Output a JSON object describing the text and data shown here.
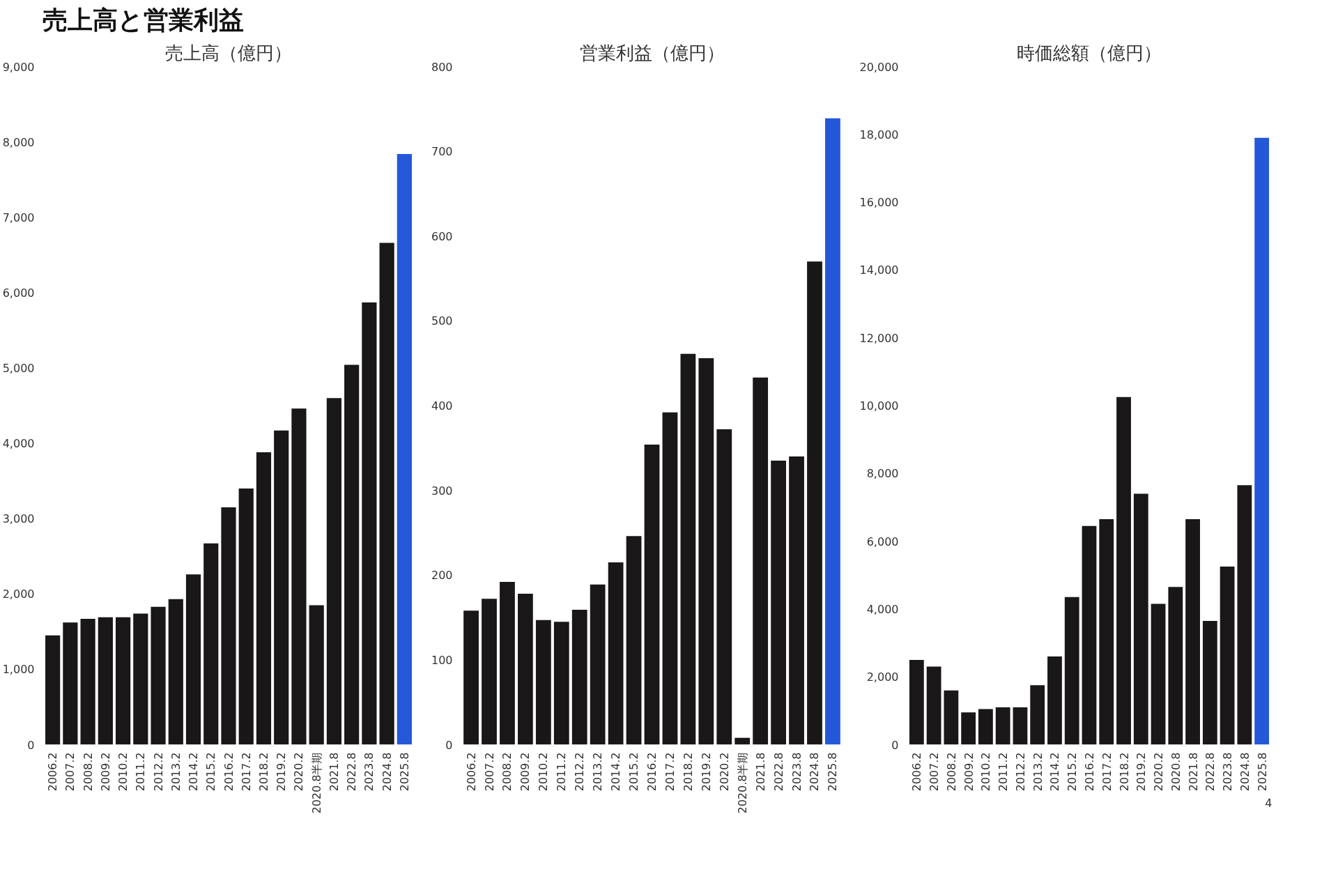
{
  "chart_data": [
    {
      "type": "bar",
      "title": "売上高（億円）",
      "annotations": [
        "売上高と営業利益"
      ],
      "categories": [
        "2006.2",
        "2007.2",
        "2008.2",
        "2009.2",
        "2010.2",
        "2011.2",
        "2012.2",
        "2013.2",
        "2014.2",
        "2015.2",
        "2016.2",
        "2017.2",
        "2018.2",
        "2019.2",
        "2020.2",
        "2020.8半期",
        "2021.8",
        "2022.8",
        "2023.8",
        "2024.8",
        "2025.8"
      ],
      "values": [
        1450,
        1620,
        1670,
        1690,
        1690,
        1740,
        1830,
        1930,
        2260,
        2670,
        3150,
        3400,
        3880,
        4170,
        4460,
        1850,
        4600,
        5040,
        5870,
        6660,
        7840
      ],
      "colors": [
        "#1a1718",
        "#1a1718",
        "#1a1718",
        "#1a1718",
        "#1a1718",
        "#1a1718",
        "#1a1718",
        "#1a1718",
        "#1a1718",
        "#1a1718",
        "#1a1718",
        "#1a1718",
        "#1a1718",
        "#1a1718",
        "#1a1718",
        "#1a1718",
        "#1a1718",
        "#1a1718",
        "#1a1718",
        "#1a1718",
        "#2458d8"
      ],
      "ylim": [
        0,
        9000
      ],
      "yticks": [
        0,
        {
          "value": 1000,
          "label": "1,000"
        },
        {
          "value": 2000,
          "label": "2,000"
        },
        {
          "value": 3000,
          "label": "3,000"
        },
        {
          "value": 4000,
          "label": "4,000"
        },
        {
          "value": 5000,
          "label": "5,000"
        },
        {
          "value": 6000,
          "label": "6,000"
        },
        {
          "value": 7000,
          "label": "7,000"
        },
        {
          "value": 8000,
          "label": "8,000"
        },
        {
          "value": 9000,
          "label": "9,000"
        }
      ]
    },
    {
      "type": "bar",
      "title": "営業利益（億円）",
      "categories": [
        "2006.2",
        "2007.2",
        "2008.2",
        "2009.2",
        "2010.2",
        "2011.2",
        "2012.2",
        "2013.2",
        "2014.2",
        "2015.2",
        "2016.2",
        "2017.2",
        "2018.2",
        "2019.2",
        "2020.2",
        "2020.8半期",
        "2021.8",
        "2022.8",
        "2023.8",
        "2024.8",
        "2025.8"
      ],
      "values": [
        158,
        172,
        192,
        178,
        147,
        145,
        159,
        189,
        215,
        246,
        354,
        392,
        461,
        456,
        372,
        8,
        433,
        335,
        340,
        570,
        739
      ],
      "colors": [
        "#1a1718",
        "#1a1718",
        "#1a1718",
        "#1a1718",
        "#1a1718",
        "#1a1718",
        "#1a1718",
        "#1a1718",
        "#1a1718",
        "#1a1718",
        "#1a1718",
        "#1a1718",
        "#1a1718",
        "#1a1718",
        "#1a1718",
        "#1a1718",
        "#1a1718",
        "#1a1718",
        "#1a1718",
        "#1a1718",
        "#2458d8"
      ],
      "ylim": [
        0,
        800
      ],
      "yticks": [
        0,
        100,
        200,
        300,
        400,
        500,
        600,
        700,
        800
      ]
    },
    {
      "type": "bar",
      "title": "時価総額（億円）",
      "annotations": [
        "4"
      ],
      "categories": [
        "2006.2",
        "2007.2",
        "2008.2",
        "2009.2",
        "2010.2",
        "2011.2",
        "2012.2",
        "2013.2",
        "2014.2",
        "2015.2",
        "2016.2",
        "2017.2",
        "2018.2",
        "2019.2",
        "2020.2",
        "2020.8",
        "2021.8",
        "2022.8",
        "2023.8",
        "2024.8",
        "2025.8"
      ],
      "values": [
        2500,
        2300,
        1600,
        950,
        1050,
        1100,
        1100,
        1750,
        2600,
        4350,
        6450,
        6650,
        10250,
        7400,
        4150,
        4650,
        6650,
        3650,
        5250,
        7650,
        17900
      ],
      "colors": [
        "#1a1718",
        "#1a1718",
        "#1a1718",
        "#1a1718",
        "#1a1718",
        "#1a1718",
        "#1a1718",
        "#1a1718",
        "#1a1718",
        "#1a1718",
        "#1a1718",
        "#1a1718",
        "#1a1718",
        "#1a1718",
        "#1a1718",
        "#1a1718",
        "#1a1718",
        "#1a1718",
        "#1a1718",
        "#1a1718",
        "#2458d8"
      ],
      "ylim": [
        0,
        20000
      ],
      "yticks": [
        0,
        {
          "value": 2000,
          "label": "2,000"
        },
        {
          "value": 4000,
          "label": "4,000"
        },
        {
          "value": 6000,
          "label": "6,000"
        },
        {
          "value": 8000,
          "label": "8,000"
        },
        {
          "value": 10000,
          "label": "10,000"
        },
        {
          "value": 12000,
          "label": "12,000"
        },
        {
          "value": 14000,
          "label": "14,000"
        },
        {
          "value": 16000,
          "label": "16,000"
        },
        {
          "value": 18000,
          "label": "18,000"
        },
        {
          "value": 20000,
          "label": "20,000"
        }
      ]
    }
  ]
}
